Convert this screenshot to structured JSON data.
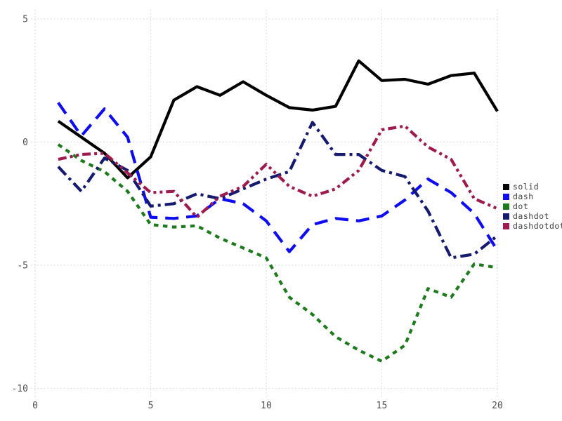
{
  "chart_data": {
    "type": "line",
    "title": "",
    "xlabel": "",
    "ylabel": "",
    "xlim": [
      0,
      20
    ],
    "ylim": [
      -10,
      5
    ],
    "x_ticks": [
      "0",
      "5",
      "10",
      "15",
      "20"
    ],
    "x_tick_values": [
      0,
      5,
      10,
      15,
      20
    ],
    "y_ticks": [
      "5",
      "0",
      "-5",
      "-10"
    ],
    "y_tick_values": [
      5,
      0,
      -5,
      -10
    ],
    "grid": true,
    "legend_position": "right-outside",
    "x": [
      1,
      2,
      3,
      4,
      5,
      6,
      7,
      8,
      9,
      10,
      11,
      12,
      13,
      14,
      15,
      16,
      17,
      18,
      19,
      20
    ],
    "series": [
      {
        "name": "solid",
        "line_style": "solid",
        "color": "#000000",
        "values": [
          0.85,
          0.2,
          -0.45,
          -1.45,
          -0.6,
          1.7,
          2.25,
          1.9,
          2.45,
          1.9,
          1.4,
          1.3,
          1.45,
          3.3,
          2.5,
          2.55,
          2.35,
          2.7,
          2.8,
          1.25
        ]
      },
      {
        "name": "dash",
        "line_style": "dash",
        "color": "#0d0df0",
        "values": [
          1.6,
          0.25,
          1.35,
          0.2,
          -3.05,
          -3.1,
          -3.0,
          -2.3,
          -2.5,
          -3.2,
          -4.45,
          -3.35,
          -3.1,
          -3.2,
          -3.0,
          -2.35,
          -1.5,
          -2.05,
          -2.9,
          -4.4
        ]
      },
      {
        "name": "dot",
        "line_style": "dot",
        "color": "#1d7a1d",
        "values": [
          -0.1,
          -0.75,
          -1.2,
          -2.0,
          -3.35,
          -3.45,
          -3.4,
          -3.9,
          -4.3,
          -4.7,
          -6.3,
          -7.0,
          -7.9,
          -8.45,
          -8.9,
          -8.25,
          -5.95,
          -6.3,
          -4.95,
          -5.1
        ]
      },
      {
        "name": "dashdot",
        "line_style": "dashdot",
        "color": "#151b6e",
        "values": [
          -1.0,
          -2.0,
          -0.65,
          -1.15,
          -2.6,
          -2.5,
          -2.1,
          -2.3,
          -1.9,
          -1.5,
          -1.2,
          0.8,
          -0.5,
          -0.5,
          -1.15,
          -1.4,
          -2.8,
          -4.7,
          -4.55,
          -3.8
        ]
      },
      {
        "name": "dashdotdot",
        "line_style": "dashdotdot",
        "color": "#9e1b4f",
        "values": [
          -0.7,
          -0.5,
          -0.45,
          -1.25,
          -2.05,
          -2.0,
          -3.05,
          -2.2,
          -1.8,
          -0.9,
          -1.8,
          -2.2,
          -1.9,
          -1.15,
          0.5,
          0.65,
          -0.2,
          -0.7,
          -2.3,
          -2.7
        ]
      }
    ]
  },
  "colors": {
    "background": "#ffffff",
    "grid": "#d7d9e6",
    "tick_text": "#4f4f4f",
    "legend_text": "#404040"
  }
}
